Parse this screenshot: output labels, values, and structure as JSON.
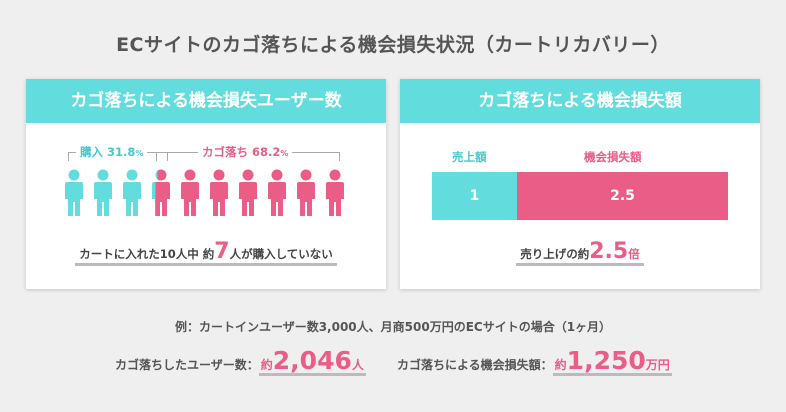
{
  "title": "ECサイトのカゴ落ちによる機会損失状況（カートリカバリー）",
  "left_card": {
    "heading": "カゴ落ちによる機会損失ユーザー数",
    "purchase_label": "購入",
    "purchase_value": "31.8",
    "abandon_label": "カゴ落ち",
    "abandon_value": "68.2",
    "pct_unit": "%",
    "people_total": 10,
    "people_purchased": 3,
    "summary_prefix": "カートに入れた10人中 約",
    "summary_number": "7",
    "summary_suffix": "人が購入していない"
  },
  "right_card": {
    "heading": "カゴ落ちによる機会損失額",
    "sales_label": "売上額",
    "loss_label": "機会損失額",
    "sales_value": "1",
    "loss_value": "2.5",
    "summary_prefix": "売り上げの約",
    "summary_number": "2.5",
    "summary_suffix": "倍"
  },
  "footnote": "例：カートインユーザー数3,000人、月商500万円のECサイトの場合（1ヶ月）",
  "stats": {
    "users_label": "カゴ落ちしたユーザー数：",
    "users_prefix": "約",
    "users_value": "2,046",
    "users_unit": "人",
    "loss_label": "カゴ落ちによる機会損失額：",
    "loss_prefix": "約",
    "loss_value": "1,250",
    "loss_unit": "万円"
  },
  "colors": {
    "teal": "#62dcdd",
    "teal_text": "#48c8cc",
    "pink": "#e95d87",
    "bg": "#efefef"
  }
}
